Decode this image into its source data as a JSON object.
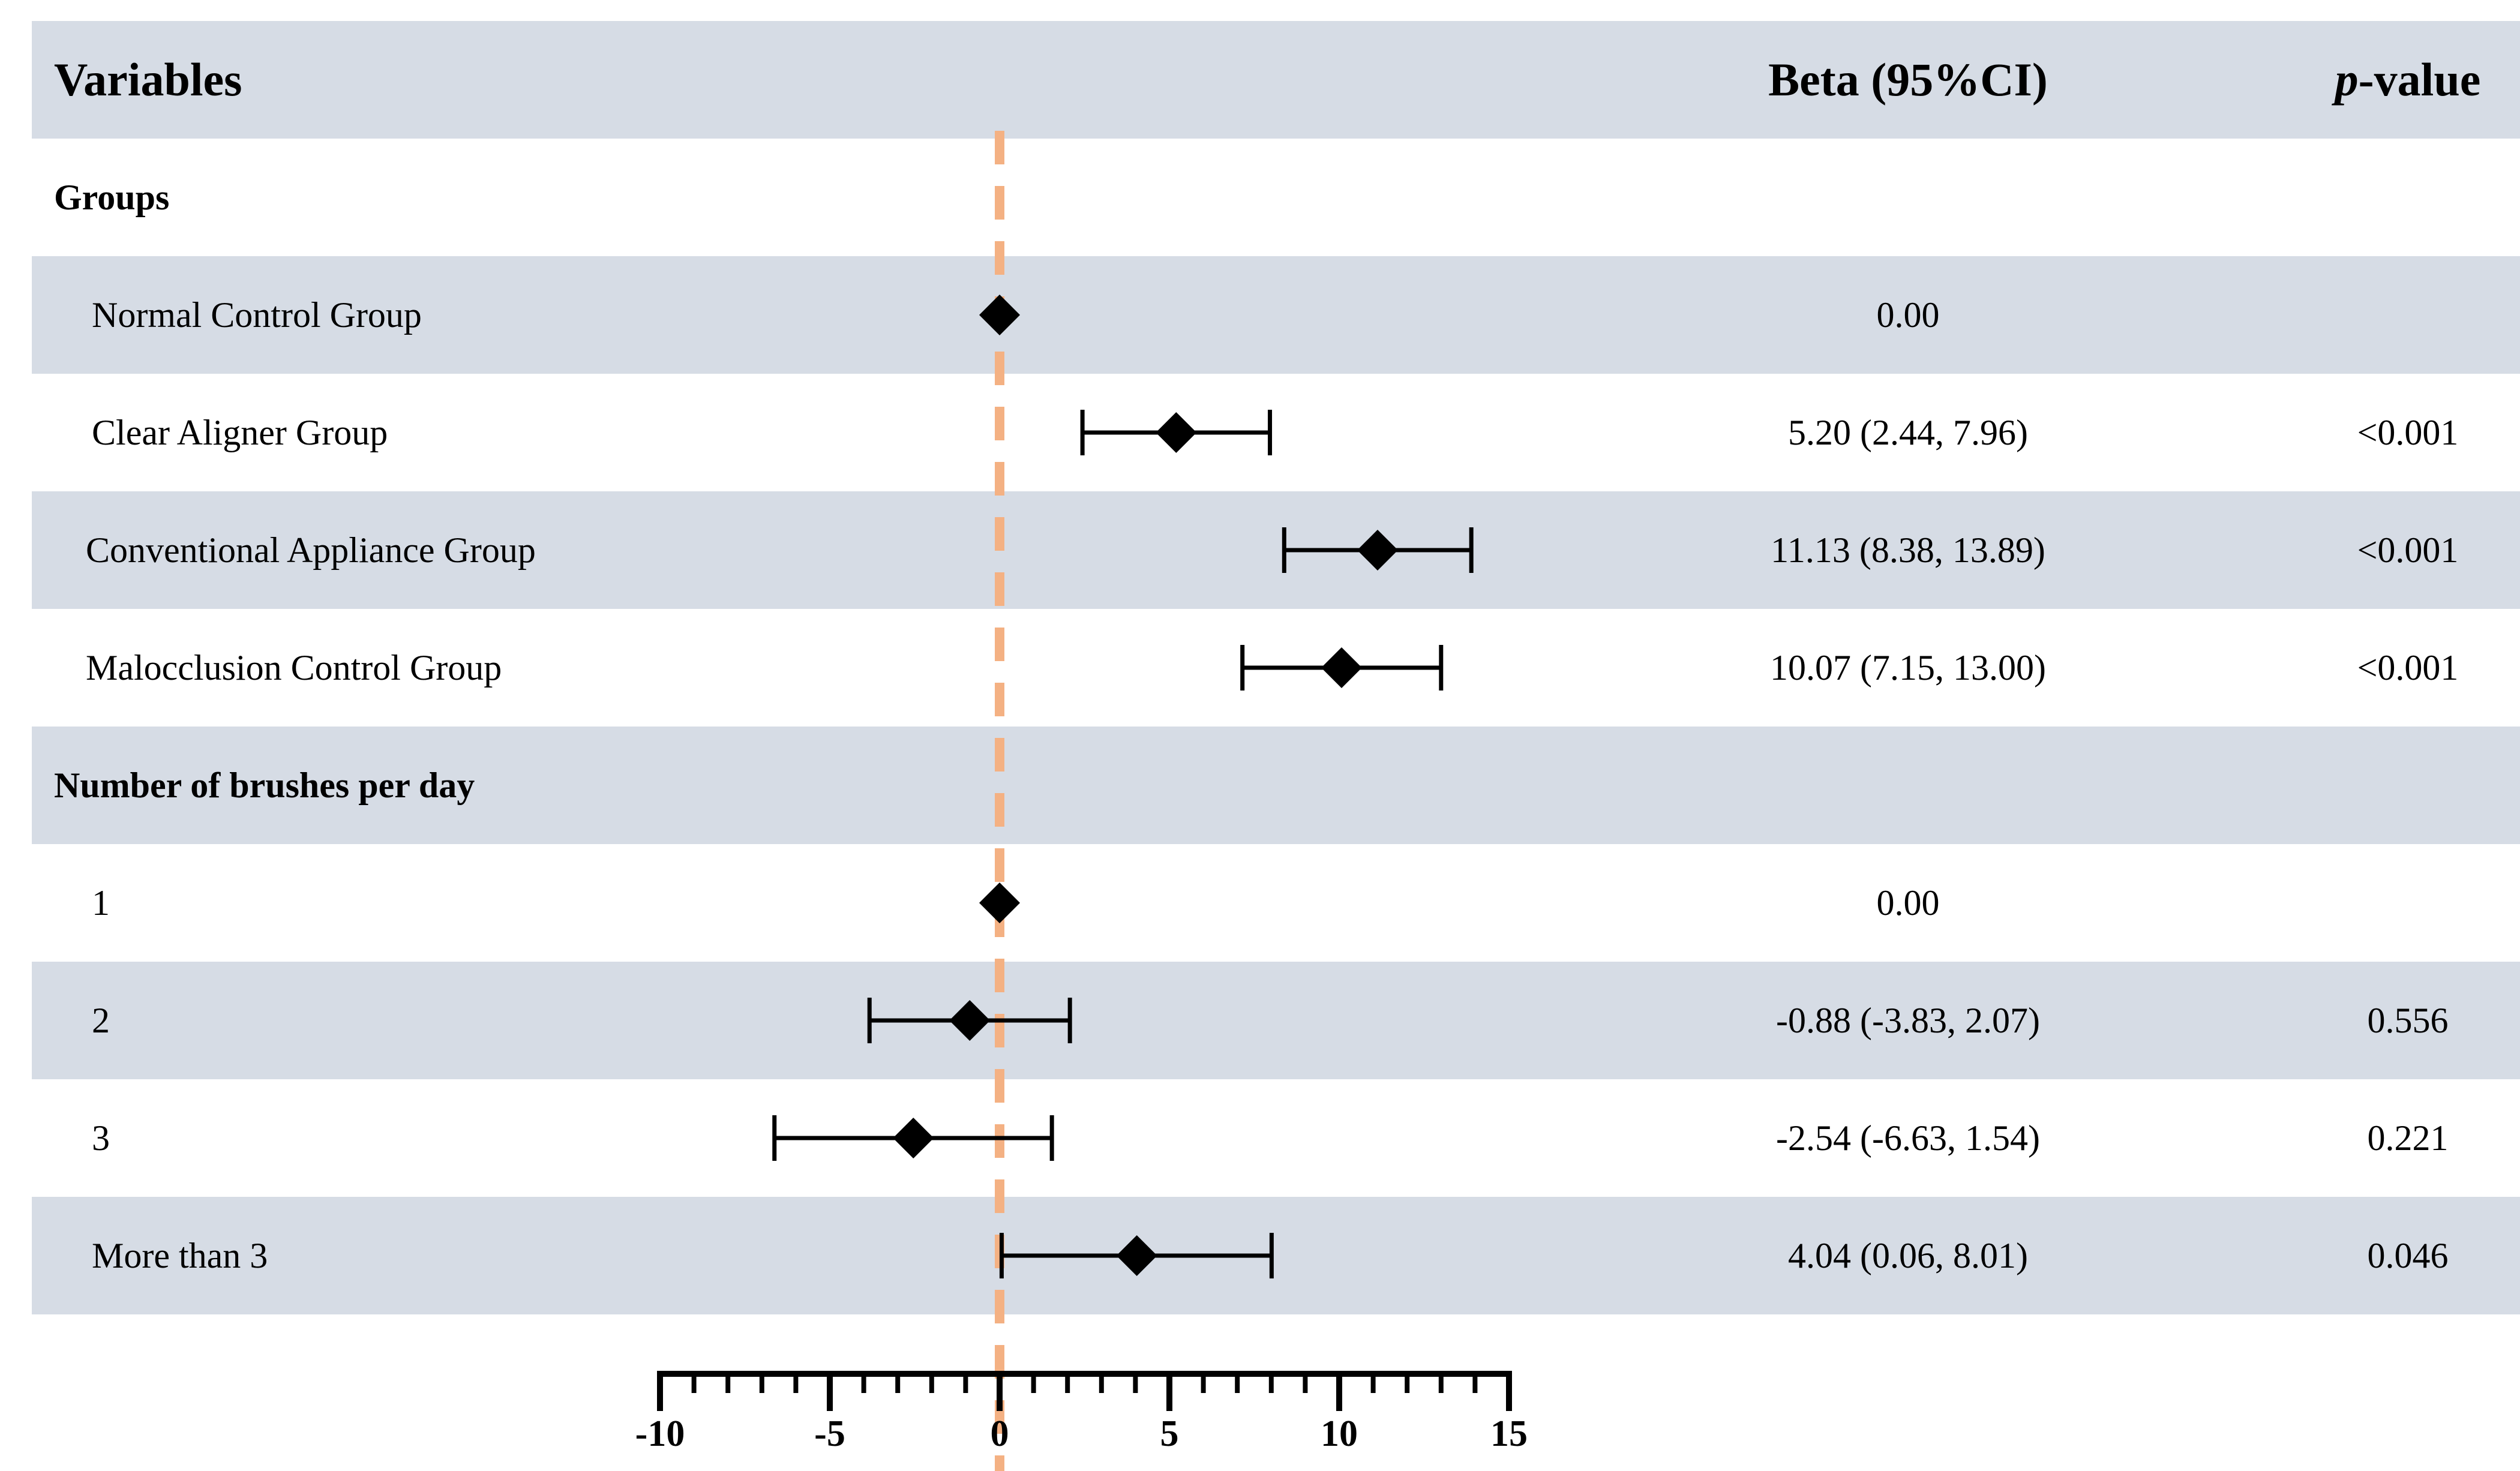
{
  "header": {
    "variables": "Variables",
    "beta": "Beta (95%CI)",
    "p_italic": "p",
    "p_rest": "-value"
  },
  "rows": [
    {
      "kind": "section",
      "label": "Groups"
    },
    {
      "kind": "item",
      "label": "Normal Control Group",
      "beta_text": "0.00",
      "p": ""
    },
    {
      "kind": "item",
      "label": "Clear Aligner Group",
      "beta_text": "5.20 (2.44, 7.96)",
      "p": "<0.001"
    },
    {
      "kind": "item",
      "label": "Conventional Appliance Group",
      "beta_text": "11.13 (8.38, 13.89)",
      "p": "<0.001"
    },
    {
      "kind": "item",
      "label": "Malocclusion Control Group",
      "beta_text": "10.07 (7.15, 13.00)",
      "p": "<0.001"
    },
    {
      "kind": "section",
      "label": "Number of brushes per day"
    },
    {
      "kind": "item",
      "label": "1",
      "beta_text": "0.00",
      "p": ""
    },
    {
      "kind": "item",
      "label": "2",
      "beta_text": "-0.88 (-3.83, 2.07)",
      "p": "0.556"
    },
    {
      "kind": "item",
      "label": "3",
      "beta_text": "-2.54 (-6.63, 1.54)",
      "p": "0.221"
    },
    {
      "kind": "item",
      "label": "More than 3",
      "beta_text": "4.04 (0.06, 8.01)",
      "p": "0.046"
    }
  ],
  "colors": {
    "row_shade": "#d6dce5",
    "reference_line": "#f4b183",
    "marker": "#000000"
  },
  "chart_data": {
    "type": "forest",
    "reference_value": 0,
    "xlim": [
      -10,
      15
    ],
    "x_ticks": [
      "-10",
      "-5",
      "0",
      "5",
      "10",
      "15"
    ],
    "minor_tick_step": 1,
    "estimates": [
      {
        "label": "Normal Control Group",
        "beta": 0.0,
        "lower": null,
        "upper": null
      },
      {
        "label": "Clear Aligner Group",
        "beta": 5.2,
        "lower": 2.44,
        "upper": 7.96
      },
      {
        "label": "Conventional Appliance Group",
        "beta": 11.13,
        "lower": 8.38,
        "upper": 13.89
      },
      {
        "label": "Malocclusion Control Group",
        "beta": 10.07,
        "lower": 7.15,
        "upper": 13.0
      },
      {
        "label": "1",
        "beta": 0.0,
        "lower": null,
        "upper": null
      },
      {
        "label": "2",
        "beta": -0.88,
        "lower": -3.83,
        "upper": 2.07
      },
      {
        "label": "3",
        "beta": -2.54,
        "lower": -6.63,
        "upper": 1.54
      },
      {
        "label": "More than 3",
        "beta": 4.04,
        "lower": 0.06,
        "upper": 8.01
      }
    ]
  }
}
